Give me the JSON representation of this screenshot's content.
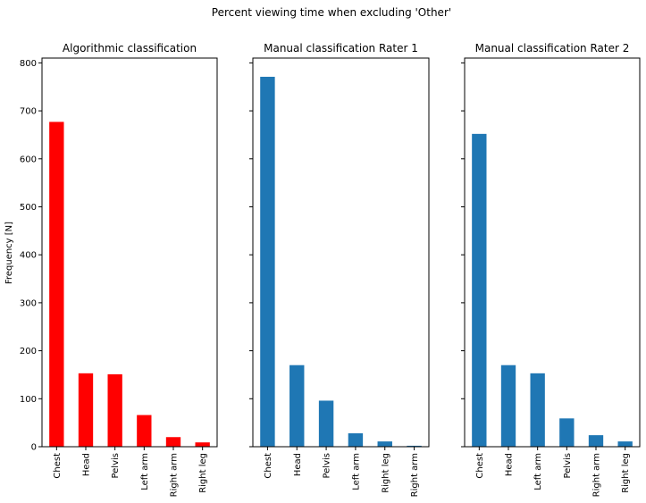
{
  "figure": {
    "title": "Percent viewing time when excluding 'Other'",
    "ylabel": "Frequency [N]"
  },
  "chart_data": [
    {
      "type": "bar",
      "title": "Algorithmic classification",
      "categories": [
        "Chest",
        "Head",
        "Pelvis",
        "Left arm",
        "Right arm",
        "Right leg"
      ],
      "values": [
        677,
        153,
        151,
        66,
        20,
        9
      ],
      "color": "#ff0000",
      "ylim": [
        0,
        810
      ],
      "yticks": [
        0,
        100,
        200,
        300,
        400,
        500,
        600,
        700,
        800
      ],
      "ylabel": "Frequency [N]",
      "grid": false
    },
    {
      "type": "bar",
      "title": "Manual classification Rater 1",
      "categories": [
        "Chest",
        "Head",
        "Pelvis",
        "Left arm",
        "Right leg",
        "Right arm"
      ],
      "values": [
        771,
        170,
        96,
        28,
        11,
        2
      ],
      "color": "#1f77b4",
      "ylim": [
        0,
        810
      ],
      "yticks": [
        0,
        100,
        200,
        300,
        400,
        500,
        600,
        700,
        800
      ],
      "grid": false
    },
    {
      "type": "bar",
      "title": "Manual classification Rater 2",
      "categories": [
        "Chest",
        "Head",
        "Left arm",
        "Pelvis",
        "Right arm",
        "Right leg"
      ],
      "values": [
        652,
        170,
        153,
        59,
        24,
        11
      ],
      "color": "#1f77b4",
      "ylim": [
        0,
        810
      ],
      "yticks": [
        0,
        100,
        200,
        300,
        400,
        500,
        600,
        700,
        800
      ],
      "grid": false
    }
  ]
}
